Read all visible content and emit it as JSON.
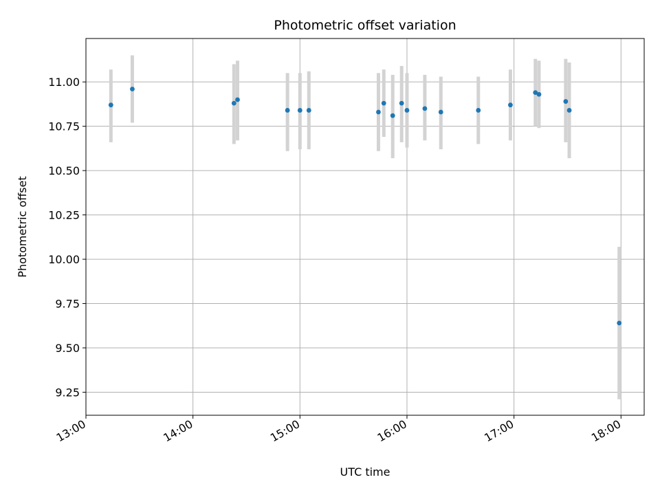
{
  "chart_data": {
    "type": "scatter",
    "title": "Photometric offset variation",
    "xlabel": "UTC time",
    "ylabel": "Photometric offset",
    "x_ticks": [
      "13:00",
      "14:00",
      "15:00",
      "16:00",
      "17:00",
      "18:00"
    ],
    "y_ticks": [
      "9.25",
      "9.50",
      "9.75",
      "10.00",
      "10.25",
      "10.50",
      "10.75",
      "11.00"
    ],
    "xlim": [
      "13:00",
      "18:13"
    ],
    "ylim": [
      9.12,
      11.245
    ],
    "grid": true,
    "legend": "none",
    "series": [
      {
        "points": [
          {
            "x": "13:14",
            "y": 10.87,
            "err_low": 10.66,
            "err_high": 11.07
          },
          {
            "x": "13:26",
            "y": 10.96,
            "err_low": 10.77,
            "err_high": 11.15
          },
          {
            "x": "14:23",
            "y": 10.88,
            "err_low": 10.65,
            "err_high": 11.1
          },
          {
            "x": "14:25",
            "y": 10.9,
            "err_low": 10.67,
            "err_high": 11.12
          },
          {
            "x": "14:53",
            "y": 10.84,
            "err_low": 10.61,
            "err_high": 11.05
          },
          {
            "x": "15:00",
            "y": 10.84,
            "err_low": 10.62,
            "err_high": 11.05
          },
          {
            "x": "15:05",
            "y": 10.84,
            "err_low": 10.62,
            "err_high": 11.06
          },
          {
            "x": "15:44",
            "y": 10.83,
            "err_low": 10.61,
            "err_high": 11.05
          },
          {
            "x": "15:47",
            "y": 10.88,
            "err_low": 10.69,
            "err_high": 11.07
          },
          {
            "x": "15:52",
            "y": 10.81,
            "err_low": 10.57,
            "err_high": 11.04
          },
          {
            "x": "15:57",
            "y": 10.88,
            "err_low": 10.66,
            "err_high": 11.09
          },
          {
            "x": "16:00",
            "y": 10.84,
            "err_low": 10.63,
            "err_high": 11.05
          },
          {
            "x": "16:10",
            "y": 10.85,
            "err_low": 10.67,
            "err_high": 11.04
          },
          {
            "x": "16:19",
            "y": 10.83,
            "err_low": 10.62,
            "err_high": 11.03
          },
          {
            "x": "16:40",
            "y": 10.84,
            "err_low": 10.65,
            "err_high": 11.03
          },
          {
            "x": "16:58",
            "y": 10.87,
            "err_low": 10.67,
            "err_high": 11.07
          },
          {
            "x": "17:12",
            "y": 10.94,
            "err_low": 10.75,
            "err_high": 11.13
          },
          {
            "x": "17:14",
            "y": 10.93,
            "err_low": 10.74,
            "err_high": 11.12
          },
          {
            "x": "17:29",
            "y": 10.89,
            "err_low": 10.66,
            "err_high": 11.13
          },
          {
            "x": "17:31",
            "y": 10.84,
            "err_low": 10.57,
            "err_high": 11.11
          },
          {
            "x": "17:59",
            "y": 9.64,
            "err_low": 9.21,
            "err_high": 10.07
          }
        ]
      }
    ]
  },
  "colors": {
    "point": "#1f77b4",
    "errorbar": "#d3d3d3",
    "grid": "#b0b0b0",
    "axis": "#000000"
  }
}
